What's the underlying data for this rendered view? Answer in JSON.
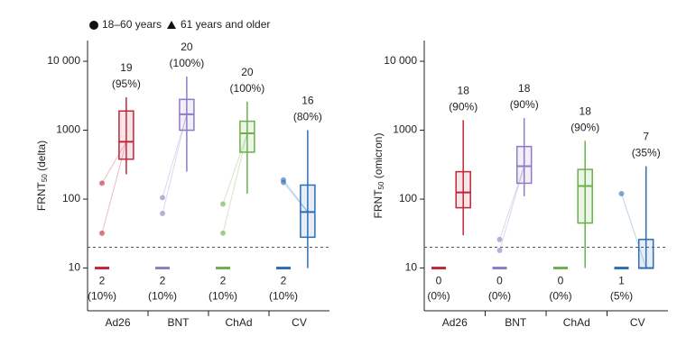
{
  "legend": {
    "items": [
      {
        "marker": "circle",
        "label": "18–60 years"
      },
      {
        "marker": "triangle",
        "label": "61 years and older"
      }
    ]
  },
  "chart_data": [
    {
      "type": "box",
      "log_scale": true,
      "ylabel": {
        "main": "FRNT",
        "sub": "50",
        "suffix": " (delta)"
      },
      "ylim": [
        2.4,
        20000
      ],
      "yticks": [
        10,
        100,
        1000,
        {
          "value": 10000,
          "label": "10 000"
        }
      ],
      "threshold": 20,
      "pre_value": 10,
      "categories": [
        "Ad26",
        "BNT",
        "ChAd",
        "CV"
      ],
      "colors": [
        "#c0263a",
        "#8e7cc3",
        "#6ab04c",
        "#2f6db3"
      ],
      "boxes": [
        {
          "low": 230,
          "q1": 380,
          "median": 680,
          "q3": 1900,
          "high": 3000
        },
        {
          "low": 250,
          "q1": 1000,
          "median": 1700,
          "q3": 2800,
          "high": 6000
        },
        {
          "low": 120,
          "q1": 480,
          "median": 900,
          "q3": 1350,
          "high": 2600
        },
        {
          "low": 10,
          "q1": 28,
          "median": 65,
          "q3": 160,
          "high": 1000
        }
      ],
      "pre_points": [
        [
          170,
          32
        ],
        [
          105,
          62
        ],
        [
          85,
          32
        ],
        [
          190,
          175
        ]
      ],
      "post_labels": [
        [
          "19",
          "(95%)"
        ],
        [
          "20",
          "(100%)"
        ],
        [
          "20",
          "(100%)"
        ],
        [
          "16",
          "(80%)"
        ]
      ],
      "pre_labels": [
        [
          "2",
          "(10%)"
        ],
        [
          "2",
          "(10%)"
        ],
        [
          "2",
          "(10%)"
        ],
        [
          "2",
          "(10%)"
        ]
      ]
    },
    {
      "type": "box",
      "log_scale": true,
      "ylabel": {
        "main": "FRNT",
        "sub": "50",
        "suffix": " (omicron)"
      },
      "ylim": [
        2.4,
        20000
      ],
      "yticks": [
        10,
        100,
        1000,
        {
          "value": 10000,
          "label": "10 000"
        }
      ],
      "threshold": 20,
      "pre_value": 10,
      "categories": [
        "Ad26",
        "BNT",
        "ChAd",
        "CV"
      ],
      "colors": [
        "#c0263a",
        "#8e7cc3",
        "#6ab04c",
        "#2f6db3"
      ],
      "boxes": [
        {
          "low": 30,
          "q1": 75,
          "median": 125,
          "q3": 250,
          "high": 1400
        },
        {
          "low": 110,
          "q1": 170,
          "median": 300,
          "q3": 580,
          "high": 1500
        },
        {
          "low": 10,
          "q1": 45,
          "median": 155,
          "q3": 270,
          "high": 700
        },
        {
          "low": 10,
          "q1": 10,
          "median": 10,
          "q3": 26,
          "high": 300
        }
      ],
      "pre_points": [
        [],
        [
          26,
          18
        ],
        [],
        [
          120
        ]
      ],
      "post_labels": [
        [
          "18",
          "(90%)"
        ],
        [
          "18",
          "(90%)"
        ],
        [
          "18",
          "(90%)"
        ],
        [
          "7",
          "(35%)"
        ]
      ],
      "pre_labels": [
        [
          "0",
          "(0%)"
        ],
        [
          "0",
          "(0%)"
        ],
        [
          "0",
          "(0%)"
        ],
        [
          "1",
          "(5%)"
        ]
      ]
    }
  ]
}
